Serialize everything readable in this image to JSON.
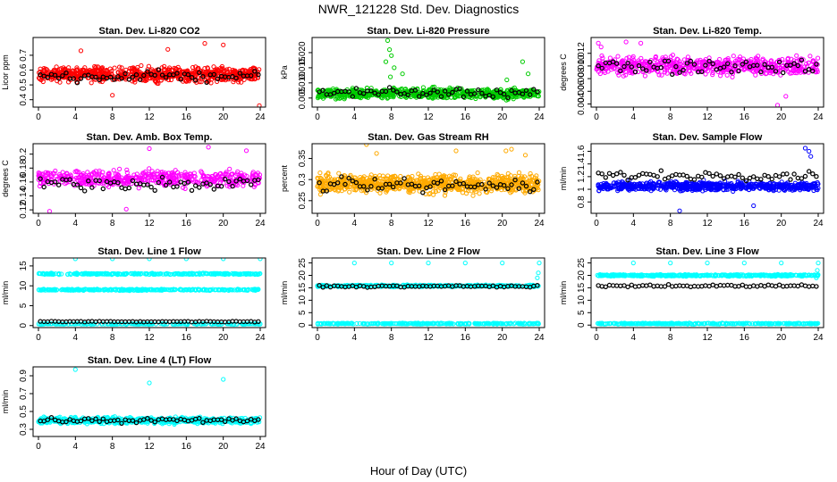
{
  "figure": {
    "title": "NWR_121228  Std. Dev. Diagnostics",
    "xlabel": "Hour of Day (UTC)"
  },
  "colors": {
    "black": "#000000"
  },
  "chart_data": [
    {
      "type": "scatter",
      "title": "Stan. Dev. Li-820 CO2",
      "ylabel": "Licor ppm",
      "color": "#ff0000",
      "xlim": [
        0,
        24
      ],
      "xticks": [
        0,
        4,
        8,
        12,
        16,
        20,
        24
      ],
      "ylim": [
        0.35,
        0.82
      ],
      "yticks": [
        0.4,
        0.5,
        0.6,
        0.7
      ],
      "bands": [
        {
          "center": 0.57,
          "spread": 0.07,
          "n": 700
        }
      ],
      "black_series": {
        "center": 0.56,
        "spread": 0.06,
        "n": 60
      },
      "outliers": [
        [
          4.6,
          0.73
        ],
        [
          8.0,
          0.43
        ],
        [
          14.0,
          0.74
        ],
        [
          18.0,
          0.78
        ],
        [
          20.0,
          0.77
        ],
        [
          23.9,
          0.36
        ]
      ]
    },
    {
      "type": "scatter",
      "title": "Stan. Dev. Li-820 Pressure",
      "ylabel": "kPa",
      "color": "#00cc00",
      "xlim": [
        0,
        24
      ],
      "xticks": [
        0,
        4,
        8,
        12,
        16,
        20,
        24
      ],
      "ylim": [
        0.002,
        0.025
      ],
      "yticks": [
        0.005,
        0.01,
        0.015,
        0.02
      ],
      "bands": [
        {
          "center": 0.0065,
          "spread": 0.0025,
          "n": 700
        }
      ],
      "black_series": {
        "center": 0.0067,
        "spread": 0.0022,
        "n": 60
      },
      "outliers": [
        [
          7.6,
          0.024
        ],
        [
          7.8,
          0.021
        ],
        [
          8.0,
          0.019
        ],
        [
          7.4,
          0.017
        ],
        [
          8.3,
          0.015
        ],
        [
          9.2,
          0.013
        ],
        [
          7.9,
          0.012
        ],
        [
          22.2,
          0.017
        ],
        [
          22.8,
          0.013
        ],
        [
          20.5,
          0.011
        ]
      ]
    },
    {
      "type": "scatter",
      "title": "Stan. Dev. Li-820 Temp.",
      "ylabel": "degrees C",
      "color": "#ff00ff",
      "xlim": [
        0,
        24
      ],
      "xticks": [
        0,
        4,
        8,
        12,
        16,
        20,
        24
      ],
      "ylim": [
        0.0035,
        0.0145
      ],
      "yticks": [
        0.004,
        0.006,
        0.008,
        0.01,
        0.012
      ],
      "bands": [
        {
          "center": 0.01,
          "spread": 0.002,
          "n": 600
        }
      ],
      "black_series": {
        "center": 0.01,
        "spread": 0.0016,
        "n": 60
      },
      "outliers": [
        [
          0.2,
          0.0136
        ],
        [
          0.5,
          0.013
        ],
        [
          3.2,
          0.0138
        ],
        [
          4.8,
          0.0136
        ],
        [
          19.6,
          0.0038
        ],
        [
          20.5,
          0.0052
        ]
      ]
    },
    {
      "type": "scatter",
      "title": "Stan. Dev. Amb. Box Temp.",
      "ylabel": "degrees C",
      "color": "#ff00ff",
      "xlim": [
        0,
        24
      ],
      "xticks": [
        0,
        4,
        8,
        12,
        16,
        20,
        24
      ],
      "ylim": [
        0.115,
        0.215
      ],
      "yticks": [
        0.12,
        0.14,
        0.16,
        0.18,
        0.2
      ],
      "bands": [
        {
          "center": 0.165,
          "spread": 0.017,
          "n": 500
        }
      ],
      "black_series": {
        "center": 0.158,
        "spread": 0.014,
        "n": 60
      },
      "outliers": [
        [
          1.2,
          0.118
        ],
        [
          9.5,
          0.121
        ],
        [
          12.0,
          0.208
        ],
        [
          18.4,
          0.21
        ],
        [
          22.5,
          0.205
        ]
      ]
    },
    {
      "type": "scatter",
      "title": "Stan. Dev. Gas Stream RH",
      "ylabel": "percent",
      "color": "#ffaa00",
      "xlim": [
        0,
        24
      ],
      "xticks": [
        0,
        4,
        8,
        12,
        16,
        20,
        24
      ],
      "ylim": [
        0.22,
        0.385
      ],
      "yticks": [
        0.25,
        0.3,
        0.35
      ],
      "bands": [
        {
          "center": 0.29,
          "spread": 0.03,
          "n": 800
        }
      ],
      "black_series": {
        "center": 0.285,
        "spread": 0.025,
        "n": 60
      },
      "outliers": [
        [
          5.3,
          0.383
        ],
        [
          6.4,
          0.362
        ],
        [
          15.0,
          0.368
        ],
        [
          20.4,
          0.368
        ],
        [
          21.0,
          0.372
        ],
        [
          22.5,
          0.358
        ]
      ]
    },
    {
      "type": "scatter",
      "title": "Stan. Dev. Sample Flow",
      "ylabel": "ml/min",
      "color": "#0000ff",
      "xlim": [
        0,
        24
      ],
      "xticks": [
        0,
        4,
        8,
        12,
        16,
        20,
        24
      ],
      "ylim": [
        0.62,
        1.72
      ],
      "yticks": [
        0.8,
        1.0,
        1.2,
        1.4,
        1.6
      ],
      "bands": [
        {
          "center": 1.05,
          "spread": 0.1,
          "n": 700
        }
      ],
      "black_series": {
        "center": 1.22,
        "spread": 0.1,
        "n": 60
      },
      "outliers": [
        [
          22.6,
          1.65
        ],
        [
          23.0,
          1.6
        ],
        [
          23.2,
          1.52
        ],
        [
          9.0,
          0.66
        ],
        [
          17.0,
          0.74
        ]
      ]
    },
    {
      "type": "scatter",
      "title": "Stan. Dev. Line 1 Flow",
      "ylabel": "ml/min",
      "color": "#00ffff",
      "xlim": [
        0,
        24
      ],
      "xticks": [
        0,
        4,
        8,
        12,
        16,
        20,
        24
      ],
      "ylim": [
        -0.5,
        17
      ],
      "yticks": [
        0,
        5,
        10,
        15
      ],
      "bands": [
        {
          "center": 13.0,
          "spread": 0.25,
          "n": 300
        },
        {
          "center": 9.0,
          "spread": 0.25,
          "n": 300
        },
        {
          "center": 0.4,
          "spread": 0.15,
          "n": 200
        }
      ],
      "black_series": {
        "center": 1.0,
        "spread": 0.15,
        "n": 60
      },
      "outliers": [
        [
          4.0,
          16.8
        ],
        [
          8.0,
          16.8
        ],
        [
          12.0,
          16.8
        ],
        [
          16.0,
          16.8
        ],
        [
          20.0,
          16.8
        ],
        [
          24.0,
          16.8
        ]
      ]
    },
    {
      "type": "scatter",
      "title": "Stan. Dev. Line 2 Flow",
      "ylabel": "ml/min",
      "color": "#00ffff",
      "xlim": [
        0,
        24
      ],
      "xticks": [
        0,
        4,
        8,
        12,
        16,
        20,
        24
      ],
      "ylim": [
        -1,
        27
      ],
      "yticks": [
        0,
        5,
        10,
        15,
        20,
        25
      ],
      "bands": [
        {
          "center": 15.8,
          "spread": 0.5,
          "n": 400
        },
        {
          "center": 0.6,
          "spread": 0.3,
          "n": 300
        }
      ],
      "black_series": {
        "center": 15.6,
        "spread": 0.6,
        "n": 60
      },
      "outliers": [
        [
          4.0,
          25.0
        ],
        [
          8.0,
          25.0
        ],
        [
          12.0,
          25.0
        ],
        [
          16.0,
          25.0
        ],
        [
          20.0,
          25.0
        ],
        [
          24.0,
          25.0
        ],
        [
          23.9,
          21.0
        ],
        [
          23.8,
          19.0
        ]
      ]
    },
    {
      "type": "scatter",
      "title": "Stan. Dev. Line 3 Flow",
      "ylabel": "ml/min",
      "color": "#00ffff",
      "xlim": [
        0,
        24
      ],
      "xticks": [
        0,
        4,
        8,
        12,
        16,
        20,
        24
      ],
      "ylim": [
        -1,
        27
      ],
      "yticks": [
        0,
        5,
        10,
        15,
        20,
        25
      ],
      "bands": [
        {
          "center": 20.0,
          "spread": 0.5,
          "n": 400
        },
        {
          "center": 0.6,
          "spread": 0.3,
          "n": 300
        }
      ],
      "black_series": {
        "center": 15.8,
        "spread": 0.7,
        "n": 60
      },
      "outliers": [
        [
          4.0,
          25.0
        ],
        [
          8.0,
          25.0
        ],
        [
          12.0,
          25.0
        ],
        [
          16.0,
          25.0
        ],
        [
          20.0,
          25.0
        ],
        [
          24.0,
          25.0
        ],
        [
          23.9,
          22.0
        ],
        [
          23.8,
          19.0
        ]
      ]
    },
    {
      "type": "scatter",
      "title": "Stan. Dev. Line 4 (LT) Flow",
      "ylabel": "ml/min",
      "color": "#00ffff",
      "xlim": [
        0,
        24
      ],
      "xticks": [
        0,
        4,
        8,
        12,
        16,
        20,
        24
      ],
      "ylim": [
        0.22,
        1.0
      ],
      "yticks": [
        0.3,
        0.5,
        0.7,
        0.9
      ],
      "bands": [
        {
          "center": 0.4,
          "spread": 0.05,
          "n": 600
        }
      ],
      "black_series": {
        "center": 0.4,
        "spread": 0.04,
        "n": 60
      },
      "outliers": [
        [
          4.0,
          0.97
        ],
        [
          12.0,
          0.82
        ],
        [
          20.0,
          0.86
        ]
      ]
    }
  ]
}
